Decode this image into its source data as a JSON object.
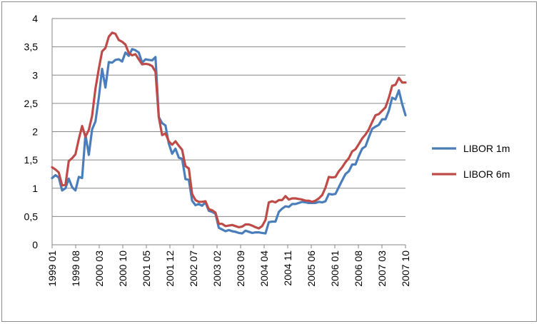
{
  "chart_data": {
    "type": "line",
    "title": "",
    "xlabel": "",
    "ylabel": "",
    "ylim": [
      0,
      4
    ],
    "ytick_labels": [
      "0",
      "0,5",
      "1",
      "1,5",
      "2",
      "2,5",
      "3",
      "3,5",
      "4"
    ],
    "ytick_values": [
      0,
      0.5,
      1,
      1.5,
      2,
      2.5,
      3,
      3.5,
      4
    ],
    "xtick_labels": [
      "1999 01",
      "1999 08",
      "2000 03",
      "2000 10",
      "2001 05",
      "2001 12",
      "2002 07",
      "2003 02",
      "2003 09",
      "2004 04",
      "2004 11",
      "2005 06",
      "2006 01",
      "2006 08",
      "2007 03",
      "2007 10"
    ],
    "grid": "horizontal",
    "legend_position": "right",
    "x_start": "1999-01",
    "series": [
      {
        "name": "LIBOR 1m",
        "color": "#4a7ebb",
        "values": [
          1.18,
          1.23,
          1.19,
          0.96,
          1.0,
          1.17,
          1.02,
          0.96,
          1.2,
          1.18,
          1.95,
          1.59,
          2.04,
          2.18,
          2.6,
          3.11,
          2.78,
          3.23,
          3.22,
          3.27,
          3.28,
          3.24,
          3.4,
          3.34,
          3.46,
          3.44,
          3.4,
          3.22,
          3.28,
          3.27,
          3.26,
          3.32,
          2.26,
          2.15,
          2.11,
          1.79,
          1.61,
          1.7,
          1.54,
          1.52,
          1.16,
          1.15,
          0.78,
          0.7,
          0.72,
          0.69,
          0.75,
          0.6,
          0.58,
          0.55,
          0.3,
          0.27,
          0.24,
          0.26,
          0.24,
          0.23,
          0.21,
          0.2,
          0.25,
          0.23,
          0.21,
          0.22,
          0.22,
          0.21,
          0.2,
          0.4,
          0.41,
          0.41,
          0.58,
          0.64,
          0.68,
          0.67,
          0.72,
          0.72,
          0.74,
          0.76,
          0.75,
          0.74,
          0.74,
          0.74,
          0.76,
          0.75,
          0.77,
          0.9,
          0.89,
          0.9,
          1.02,
          1.14,
          1.25,
          1.3,
          1.42,
          1.42,
          1.57,
          1.7,
          1.74,
          1.9,
          2.05,
          2.09,
          2.12,
          2.22,
          2.22,
          2.37,
          2.6,
          2.57,
          2.73,
          2.49,
          2.29
        ]
      },
      {
        "name": "LIBOR 6m",
        "color": "#be4b48",
        "values": [
          1.37,
          1.33,
          1.28,
          1.05,
          1.06,
          1.48,
          1.53,
          1.6,
          1.87,
          2.1,
          1.91,
          2.03,
          2.28,
          2.76,
          3.11,
          3.42,
          3.48,
          3.68,
          3.75,
          3.73,
          3.62,
          3.59,
          3.54,
          3.39,
          3.35,
          3.37,
          3.28,
          3.19,
          3.2,
          3.19,
          3.16,
          3.06,
          2.26,
          1.94,
          1.97,
          1.83,
          1.77,
          1.83,
          1.75,
          1.68,
          1.39,
          1.35,
          0.9,
          0.79,
          0.76,
          0.76,
          0.77,
          0.63,
          0.61,
          0.57,
          0.37,
          0.37,
          0.33,
          0.34,
          0.35,
          0.33,
          0.31,
          0.32,
          0.36,
          0.36,
          0.34,
          0.31,
          0.29,
          0.33,
          0.44,
          0.75,
          0.77,
          0.75,
          0.79,
          0.79,
          0.86,
          0.8,
          0.82,
          0.82,
          0.81,
          0.8,
          0.78,
          0.78,
          0.76,
          0.78,
          0.82,
          0.88,
          1.01,
          1.2,
          1.19,
          1.2,
          1.3,
          1.37,
          1.46,
          1.53,
          1.65,
          1.69,
          1.78,
          1.88,
          1.95,
          2.04,
          2.17,
          2.29,
          2.31,
          2.37,
          2.43,
          2.6,
          2.81,
          2.83,
          2.95,
          2.87,
          2.87
        ]
      }
    ]
  }
}
